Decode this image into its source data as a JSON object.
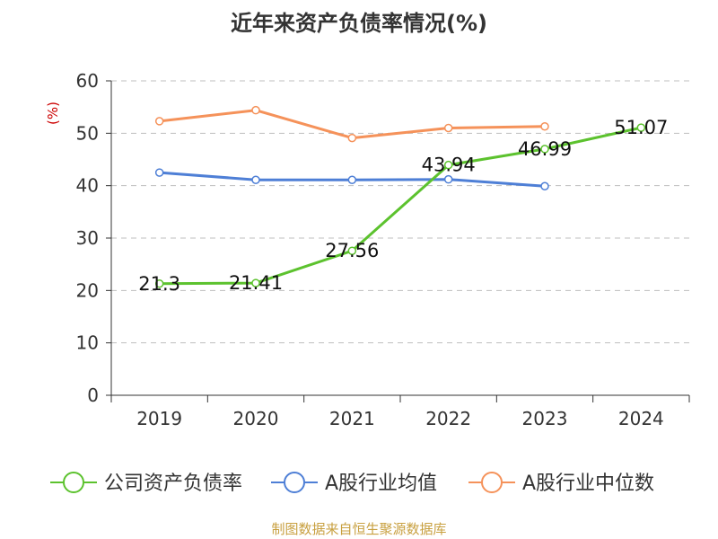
{
  "chart_data": {
    "type": "line",
    "title": "近年来资产负债率情况(%)",
    "ylabel": "(%)",
    "xlabel": "",
    "categories": [
      "2019",
      "2020",
      "2021",
      "2022",
      "2023",
      "2024"
    ],
    "ylim": [
      0,
      60
    ],
    "yticks": [
      0,
      10,
      20,
      30,
      40,
      50,
      60
    ],
    "grid": true,
    "legend_position": "bottom",
    "series": [
      {
        "name": "公司资产负债率",
        "color": "#5cc22e",
        "values": [
          21.3,
          21.41,
          27.56,
          43.94,
          46.99,
          51.07
        ],
        "labels": [
          "21.3",
          "21.41",
          "27.56",
          "43.94",
          "46.99",
          "51.07"
        ]
      },
      {
        "name": "A股行业均值",
        "color": "#4e7fd6",
        "values": [
          42.5,
          41.1,
          41.1,
          41.2,
          39.9,
          null
        ]
      },
      {
        "name": "A股行业中位数",
        "color": "#f5925a",
        "values": [
          52.3,
          54.4,
          49.1,
          51.0,
          51.3,
          null
        ]
      }
    ],
    "source": "制图数据来自恒生聚源数据库"
  }
}
